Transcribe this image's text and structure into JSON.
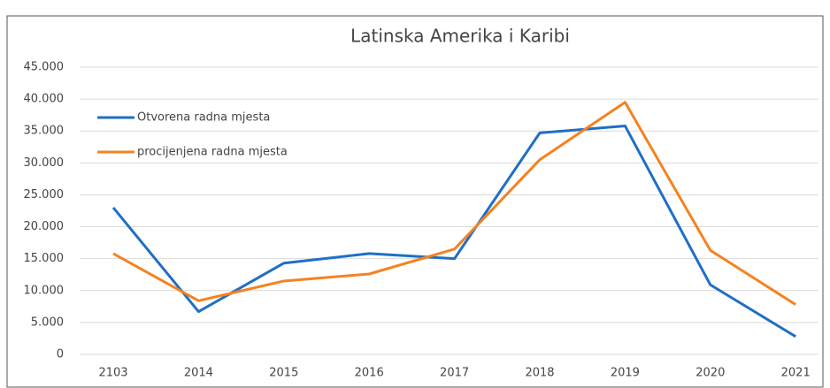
{
  "chart_data": {
    "type": "line",
    "title": "Latinska Amerika i Karibi",
    "categories": [
      "2103",
      "2014",
      "2015",
      "2016",
      "2017",
      "2018",
      "2019",
      "2020",
      "2021"
    ],
    "series": [
      {
        "name": "Otvorena radna mjesta",
        "color": "#1f6fc5",
        "values": [
          23000,
          6700,
          14300,
          15800,
          15000,
          34700,
          35800,
          10900,
          2800
        ]
      },
      {
        "name": "procijenjena radna mjesta",
        "color": "#f58220",
        "values": [
          15800,
          8400,
          11500,
          12600,
          16500,
          30500,
          39500,
          16300,
          7800
        ]
      }
    ],
    "ylim": [
      0,
      45000
    ],
    "yticks": [
      0,
      {
        "value": 5000,
        "label": "5.000"
      },
      {
        "value": 10000,
        "label": "10.000"
      },
      {
        "value": 15000,
        "label": "15.000"
      },
      {
        "value": 20000,
        "label": "20.000"
      },
      {
        "value": 25000,
        "label": "25.000"
      },
      {
        "value": 30000,
        "label": "30.000"
      },
      {
        "value": 35000,
        "label": "35.000"
      },
      {
        "value": 40000,
        "label": "40.000"
      },
      {
        "value": 45000,
        "label": "45.000"
      }
    ],
    "grid": true,
    "legend": "upper left"
  }
}
